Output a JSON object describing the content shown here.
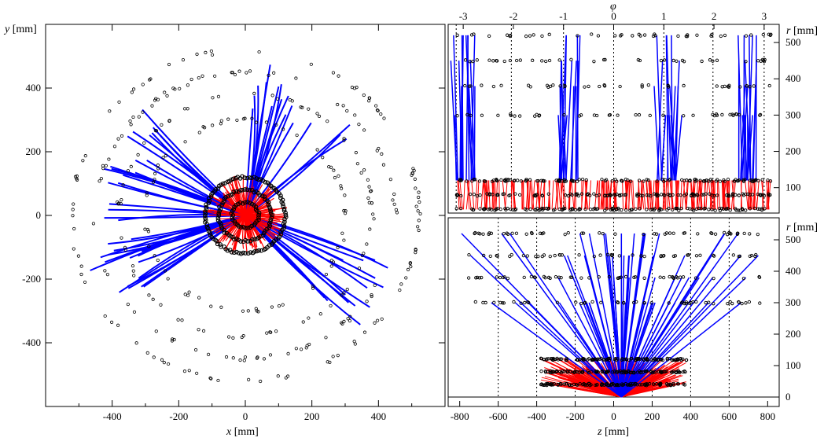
{
  "chart_data": [
    {
      "id": "xy-view",
      "type": "scatter",
      "xlabel_var": "x",
      "xlabel_unit": " [mm]",
      "ylabel_var": "y",
      "ylabel_unit": " [mm]",
      "xlim": [
        -600,
        600
      ],
      "ylim": [
        -600,
        600
      ],
      "x_ticks": [
        -400,
        -200,
        0,
        200,
        400
      ],
      "y_ticks": [
        -400,
        -200,
        0,
        200,
        400
      ],
      "inner_layer_radii": [
        40,
        80,
        120
      ],
      "outer_layer_radii": [
        300,
        380,
        450,
        520
      ],
      "hit_color": "#000000",
      "inner_track_color": "#ff0000",
      "outer_track_color": "#0000ff",
      "track_count_inner": 150,
      "track_count_outer": 75
    },
    {
      "id": "rphi-view",
      "type": "scatter",
      "xlabel_var": "φ",
      "ylabel_var": "r",
      "ylabel_unit": " [mm]",
      "xlim": [
        -3.3,
        3.3
      ],
      "ylim": [
        30,
        550
      ],
      "x_ticks": [
        -3,
        -2,
        -1,
        0,
        1,
        2,
        3
      ],
      "y_ticks": [
        100,
        200,
        300,
        400,
        500
      ],
      "dotted_phi_lines": [
        -3.14,
        -2.04,
        -1.0,
        0,
        1.0,
        1.98,
        3.0
      ],
      "track_clusters_phi": [
        -2.95,
        -0.9,
        1.05,
        2.65
      ],
      "layer_radii": [
        40,
        80,
        120,
        300,
        380,
        450,
        520
      ]
    },
    {
      "id": "rz-view",
      "type": "scatter",
      "xlabel_var": "z",
      "xlabel_unit": " [mm]",
      "ylabel_var": "r",
      "ylabel_unit": " [mm]",
      "xlim": [
        -860,
        860
      ],
      "ylim": [
        -30,
        570
      ],
      "x_ticks": [
        -800,
        -600,
        -400,
        -200,
        0,
        200,
        400,
        600,
        800
      ],
      "y_ticks": [
        0,
        100,
        200,
        300,
        400,
        500
      ],
      "dotted_z_lines": [
        -600,
        -400,
        -200,
        0,
        200,
        400,
        600
      ],
      "vertex_z": 40,
      "inner_half_length": 380,
      "layer_radii": [
        40,
        80,
        120,
        300,
        380,
        450,
        520
      ]
    }
  ]
}
